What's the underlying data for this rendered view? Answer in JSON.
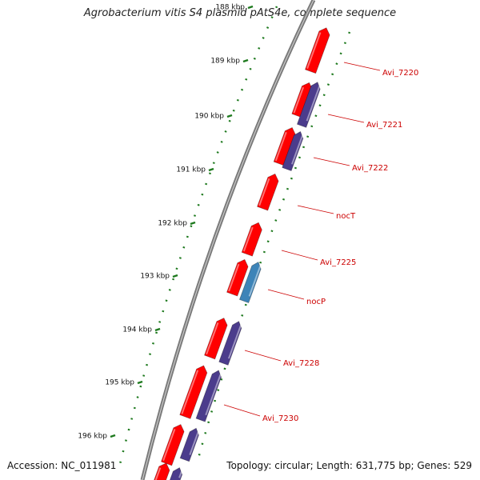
{
  "title": "Agrobacterium vitis S4 plasmid pAtS4e, complete sequence",
  "accession": "Accession: NC_011981",
  "summary": "Topology: circular; Length: 631,775 bp; Genes: 529",
  "colors": {
    "backbone": "#7a7a7a",
    "forward_gene": "#ff0000",
    "reverse_gene": "#4b3c8c",
    "highlight_gene": "#3d84b8",
    "tick_dots": "#1f7a1f",
    "label": "#cc0000"
  },
  "ticks": [
    "188 kbp",
    "189 kbp",
    "190 kbp",
    "191 kbp",
    "192 kbp",
    "193 kbp",
    "194 kbp",
    "195 kbp",
    "196 kbp"
  ],
  "gene_labels": [
    "Avi_7220",
    "Avi_7221",
    "Avi_7222",
    "nocT",
    "Avi_7225",
    "nocP",
    "Avi_7228",
    "Avi_7230"
  ]
}
